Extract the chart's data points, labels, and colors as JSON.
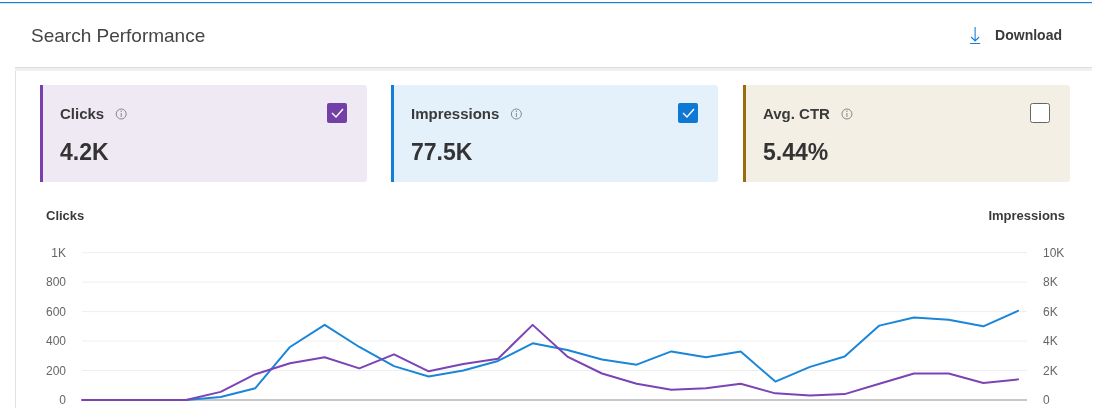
{
  "chart_data": [
    {
      "type": "other",
      "title": "Search Performance",
      "annotations": [
        "Download"
      ]
    },
    {
      "type": "other",
      "title": "Clicks",
      "annotations": [
        "4.2K"
      ]
    },
    {
      "type": "other",
      "title": "Impressions",
      "annotations": [
        "77.5K"
      ]
    },
    {
      "type": "other",
      "title": "Avg. CTR",
      "annotations": [
        "5.44%"
      ]
    },
    {
      "type": "line",
      "ylabel": "Clicks",
      "y2label": "Impressions",
      "categories": [
        null,
        null,
        null,
        null,
        null,
        null,
        null,
        null,
        null,
        null,
        null,
        null,
        null,
        null,
        null,
        null,
        null,
        null,
        null,
        null,
        null,
        null,
        null,
        null,
        null,
        null,
        null,
        null
      ],
      "series": [
        {
          "color": "#1a86d8",
          "axis": "y2",
          "values": [
            null,
            null,
            null,
            0,
            200,
            800,
            3600,
            5100,
            3600,
            2300,
            1600,
            2000,
            2650,
            3850,
            3400,
            2750,
            2400,
            3300,
            2900,
            3300,
            1250,
            2250,
            2950,
            5050,
            5600,
            5450,
            5000,
            6050
          ]
        },
        {
          "color": "#7b43b5",
          "values": [
            0,
            0,
            0,
            0,
            55,
            175,
            250,
            290,
            215,
            310,
            195,
            245,
            280,
            510,
            295,
            180,
            110,
            70,
            80,
            110,
            45,
            30,
            40,
            110,
            180,
            180,
            115,
            140
          ]
        }
      ],
      "ylim": [
        0,
        1000
      ],
      "yticks": [
        0,
        200,
        400,
        600,
        800,
        {
          "value": 1000,
          "label": "1K"
        }
      ],
      "y2lim": [
        0,
        10000
      ],
      "y2ticks": [
        0,
        {
          "value": 2000,
          "label": "2K"
        },
        {
          "value": 4000,
          "label": "4K"
        },
        {
          "value": 6000,
          "label": "6K"
        },
        {
          "value": 8000,
          "label": "8K"
        },
        {
          "value": 10000,
          "label": "10K"
        }
      ],
      "grid": "y"
    }
  ]
}
